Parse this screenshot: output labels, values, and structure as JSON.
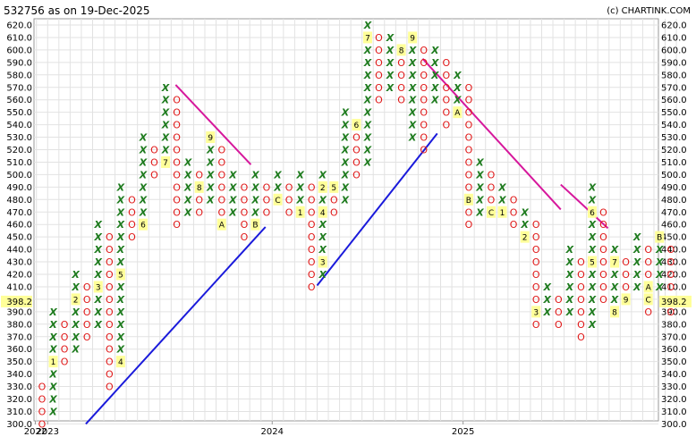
{
  "chart_data": {
    "type": "point-and-figure",
    "title": "532756 as on 19-Dec-2025",
    "credit": "(c) CHARTINK.COM",
    "box_size": 10,
    "ylim": [
      300,
      620
    ],
    "last_price": "398.2",
    "colors": {
      "x": "#1e7b1e",
      "o": "#e01818",
      "uptrend": "#1a1adb",
      "downtrend": "#d6189c",
      "highlight": "#ffff99"
    },
    "y_ticks": [
      "620.0",
      "610.0",
      "600.0",
      "590.0",
      "580.0",
      "570.0",
      "560.0",
      "550.0",
      "540.0",
      "530.0",
      "520.0",
      "510.0",
      "500.0",
      "490.0",
      "480.0",
      "470.0",
      "460.0",
      "450.0",
      "440.0",
      "430.0",
      "420.0",
      "410.0",
      "400.0",
      "390.0",
      "380.0",
      "370.0",
      "360.0",
      "350.0",
      "340.0",
      "330.0",
      "320.0",
      "310.0",
      "300.0"
    ],
    "x_labels": [
      {
        "col": -0.6,
        "text": "2022"
      },
      {
        "col": 0.5,
        "text": "2023"
      },
      {
        "col": 20.5,
        "text": "2024"
      },
      {
        "col": 37.5,
        "text": "2025"
      }
    ],
    "columns": [
      {
        "t": "O",
        "hi": 330,
        "lo": 300
      },
      {
        "t": "X",
        "hi": 390,
        "lo": 310,
        "m": {
          "350": "1"
        }
      },
      {
        "t": "O",
        "hi": 380,
        "lo": 350
      },
      {
        "t": "X",
        "hi": 420,
        "lo": 360,
        "m": {
          "400": "2"
        }
      },
      {
        "t": "O",
        "hi": 410,
        "lo": 370
      },
      {
        "t": "X",
        "hi": 460,
        "lo": 380,
        "m": {
          "410": "3"
        }
      },
      {
        "t": "O",
        "hi": 450,
        "lo": 330
      },
      {
        "t": "X",
        "hi": 490,
        "lo": 350,
        "m": {
          "350": "4",
          "420": "5"
        }
      },
      {
        "t": "O",
        "hi": 480,
        "lo": 450
      },
      {
        "t": "X",
        "hi": 530,
        "lo": 460,
        "m": {
          "460": "6"
        }
      },
      {
        "t": "O",
        "hi": 520,
        "lo": 500
      },
      {
        "t": "X",
        "hi": 570,
        "lo": 510,
        "m": {
          "510": "7"
        }
      },
      {
        "t": "O",
        "hi": 560,
        "lo": 460
      },
      {
        "t": "X",
        "hi": 510,
        "lo": 470
      },
      {
        "t": "O",
        "hi": 500,
        "lo": 470,
        "m": {
          "490": "8"
        }
      },
      {
        "t": "X",
        "hi": 530,
        "lo": 480,
        "m": {
          "530": "9"
        }
      },
      {
        "t": "O",
        "hi": 520,
        "lo": 460,
        "m": {
          "460": "A"
        }
      },
      {
        "t": "X",
        "hi": 500,
        "lo": 470
      },
      {
        "t": "O",
        "hi": 490,
        "lo": 450
      },
      {
        "t": "X",
        "hi": 500,
        "lo": 460,
        "m": {
          "460": "B"
        }
      },
      {
        "t": "O",
        "hi": 490,
        "lo": 470
      },
      {
        "t": "X",
        "hi": 500,
        "lo": 480,
        "m": {
          "480": "C"
        }
      },
      {
        "t": "O",
        "hi": 490,
        "lo": 470
      },
      {
        "t": "X",
        "hi": 500,
        "lo": 470,
        "m": {
          "470": "1"
        }
      },
      {
        "t": "O",
        "hi": 490,
        "lo": 410
      },
      {
        "t": "X",
        "hi": 500,
        "lo": 420,
        "m": {
          "430": "3",
          "470": "4",
          "490": "2"
        }
      },
      {
        "t": "O",
        "hi": 490,
        "lo": 470,
        "m": {
          "490": "5"
        }
      },
      {
        "t": "X",
        "hi": 550,
        "lo": 480
      },
      {
        "t": "O",
        "hi": 540,
        "lo": 500,
        "m": {
          "540": "6"
        }
      },
      {
        "t": "X",
        "hi": 620,
        "lo": 510,
        "m": {
          "610": "7"
        }
      },
      {
        "t": "O",
        "hi": 610,
        "lo": 560
      },
      {
        "t": "X",
        "hi": 610,
        "lo": 570
      },
      {
        "t": "O",
        "hi": 600,
        "lo": 560,
        "m": {
          "600": "8"
        }
      },
      {
        "t": "X",
        "hi": 610,
        "lo": 530,
        "m": {
          "610": "9"
        }
      },
      {
        "t": "O",
        "hi": 600,
        "lo": 520
      },
      {
        "t": "X",
        "hi": 600,
        "lo": 560
      },
      {
        "t": "O",
        "hi": 590,
        "lo": 540
      },
      {
        "t": "X",
        "hi": 580,
        "lo": 550,
        "m": {
          "550": "A"
        }
      },
      {
        "t": "O",
        "hi": 570,
        "lo": 460,
        "m": {
          "480": "B"
        }
      },
      {
        "t": "X",
        "hi": 510,
        "lo": 470
      },
      {
        "t": "O",
        "hi": 500,
        "lo": 470,
        "m": {
          "470": "C"
        }
      },
      {
        "t": "X",
        "hi": 490,
        "lo": 470,
        "m": {
          "470": "1"
        }
      },
      {
        "t": "O",
        "hi": 480,
        "lo": 460
      },
      {
        "t": "X",
        "hi": 470,
        "lo": 450,
        "m": {
          "450": "2"
        }
      },
      {
        "t": "O",
        "hi": 460,
        "lo": 380,
        "m": {
          "390": "3"
        }
      },
      {
        "t": "X",
        "hi": 410,
        "lo": 390
      },
      {
        "t": "O",
        "hi": 400,
        "lo": 380
      },
      {
        "t": "X",
        "hi": 440,
        "lo": 390,
        "m": {
          "370": "4"
        }
      },
      {
        "t": "O",
        "hi": 430,
        "lo": 370
      },
      {
        "t": "X",
        "hi": 490,
        "lo": 380,
        "m": {
          "430": "5",
          "470": "6"
        }
      },
      {
        "t": "O",
        "hi": 470,
        "lo": 400
      },
      {
        "t": "X",
        "hi": 440,
        "lo": 390,
        "m": {
          "390": "8",
          "430": "7"
        }
      },
      {
        "t": "O",
        "hi": 430,
        "lo": 400,
        "m": {
          "400": "9"
        }
      },
      {
        "t": "X",
        "hi": 450,
        "lo": 410
      },
      {
        "t": "O",
        "hi": 440,
        "lo": 390,
        "m": {
          "410": "A",
          "400": "C"
        }
      },
      {
        "t": "X",
        "hi": 450,
        "lo": 410,
        "m": {
          "450": "B"
        }
      },
      {
        "t": "O",
        "hi": 440,
        "lo": 390
      }
    ],
    "trendlines": [
      {
        "kind": "uptrend",
        "from": {
          "col": 3.9,
          "price": 300
        },
        "to": {
          "col": 19.9,
          "price": 458
        }
      },
      {
        "kind": "downtrend",
        "from": {
          "col": 11.9,
          "price": 572
        },
        "to": {
          "col": 18.6,
          "price": 508
        }
      },
      {
        "kind": "uptrend",
        "from": {
          "col": 24.5,
          "price": 411
        },
        "to": {
          "col": 35.2,
          "price": 533
        }
      },
      {
        "kind": "downtrend",
        "from": {
          "col": 33.9,
          "price": 593
        },
        "to": {
          "col": 46.2,
          "price": 472
        }
      },
      {
        "kind": "downtrend",
        "from": {
          "col": 46.2,
          "price": 492
        },
        "to": {
          "col": 50.4,
          "price": 457
        }
      }
    ]
  }
}
